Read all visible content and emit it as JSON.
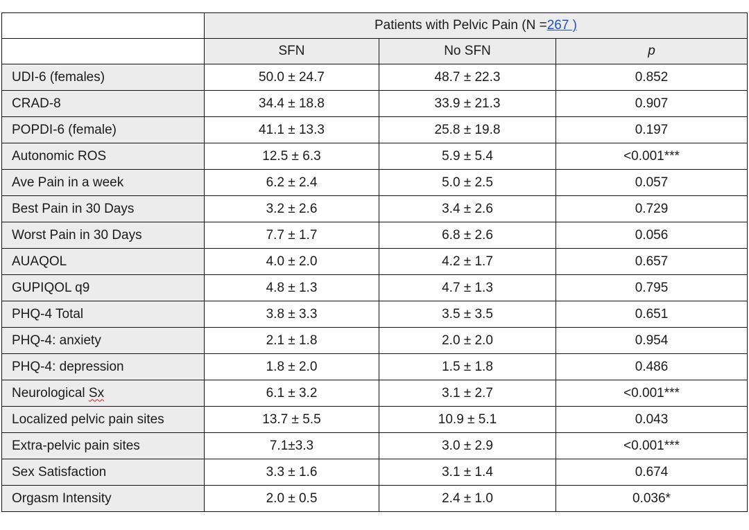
{
  "header": {
    "group_prefix": "Patients with Pelvic Pain (N =",
    "group_n": "267 )",
    "columns": [
      "SFN",
      "No SFN",
      "p"
    ]
  },
  "rows": [
    {
      "label": "UDI-6 (females)",
      "sfn": "50.0 ± 24.7",
      "no_sfn": "48.7 ± 22.3",
      "p": "0.852"
    },
    {
      "label": "CRAD-8",
      "sfn": "34.4 ± 18.8",
      "no_sfn": "33.9 ± 21.3",
      "p": "0.907"
    },
    {
      "label": "POPDI-6 (female)",
      "sfn": "41.1 ± 13.3",
      "no_sfn": "25.8 ± 19.8",
      "p": "0.197"
    },
    {
      "label": "Autonomic ROS",
      "sfn": "12.5 ± 6.3",
      "no_sfn": "5.9 ± 5.4",
      "p": "<0.001***"
    },
    {
      "label": "Ave Pain in a week",
      "sfn": "6.2 ± 2.4",
      "no_sfn": "5.0 ± 2.5",
      "p": "0.057"
    },
    {
      "label": "Best Pain in 30 Days",
      "sfn": "3.2 ± 2.6",
      "no_sfn": "3.4 ± 2.6",
      "p": "0.729"
    },
    {
      "label": "Worst Pain in 30 Days",
      "sfn": "7.7 ± 1.7",
      "no_sfn": "6.8 ± 2.6",
      "p": "0.056"
    },
    {
      "label": "AUAQOL",
      "sfn": "4.0 ± 2.0",
      "no_sfn": "4.2 ± 1.7",
      "p": "0.657"
    },
    {
      "label": "GUPIQOL q9",
      "sfn": "4.8 ± 1.3",
      "no_sfn": "4.7 ± 1.3",
      "p": "0.795"
    },
    {
      "label": "PHQ-4 Total",
      "sfn": "3.8 ± 3.3",
      "no_sfn": "3.5 ± 3.5",
      "p": "0.651"
    },
    {
      "label": "PHQ-4: anxiety",
      "sfn": "2.1 ± 1.8",
      "no_sfn": "2.0 ± 2.0",
      "p": "0.954"
    },
    {
      "label": "PHQ-4: depression",
      "sfn": "1.8 ± 2.0",
      "no_sfn": "1.5 ± 1.8",
      "p": "0.486"
    },
    {
      "label_prefix": "Neurological ",
      "label_suffix": "Sx",
      "sfn": "6.1 ± 3.2",
      "no_sfn": "3.1 ± 2.7",
      "p": "<0.001***"
    },
    {
      "label": "Localized pelvic pain sites",
      "sfn": "13.7 ± 5.5",
      "no_sfn": "10.9 ± 5.1",
      "p": "0.043"
    },
    {
      "label": "Extra-pelvic pain sites",
      "sfn": "7.1±3.3",
      "no_sfn": "3.0 ± 2.9",
      "p": "<0.001***"
    },
    {
      "label": "Sex Satisfaction",
      "sfn": "3.3 ± 1.6",
      "no_sfn": "3.1 ± 1.4",
      "p": "0.674"
    },
    {
      "label": "Orgasm Intensity",
      "sfn": "2.0 ± 0.5",
      "no_sfn": "2.4 ± 1.0",
      "p": "0.036*"
    }
  ]
}
